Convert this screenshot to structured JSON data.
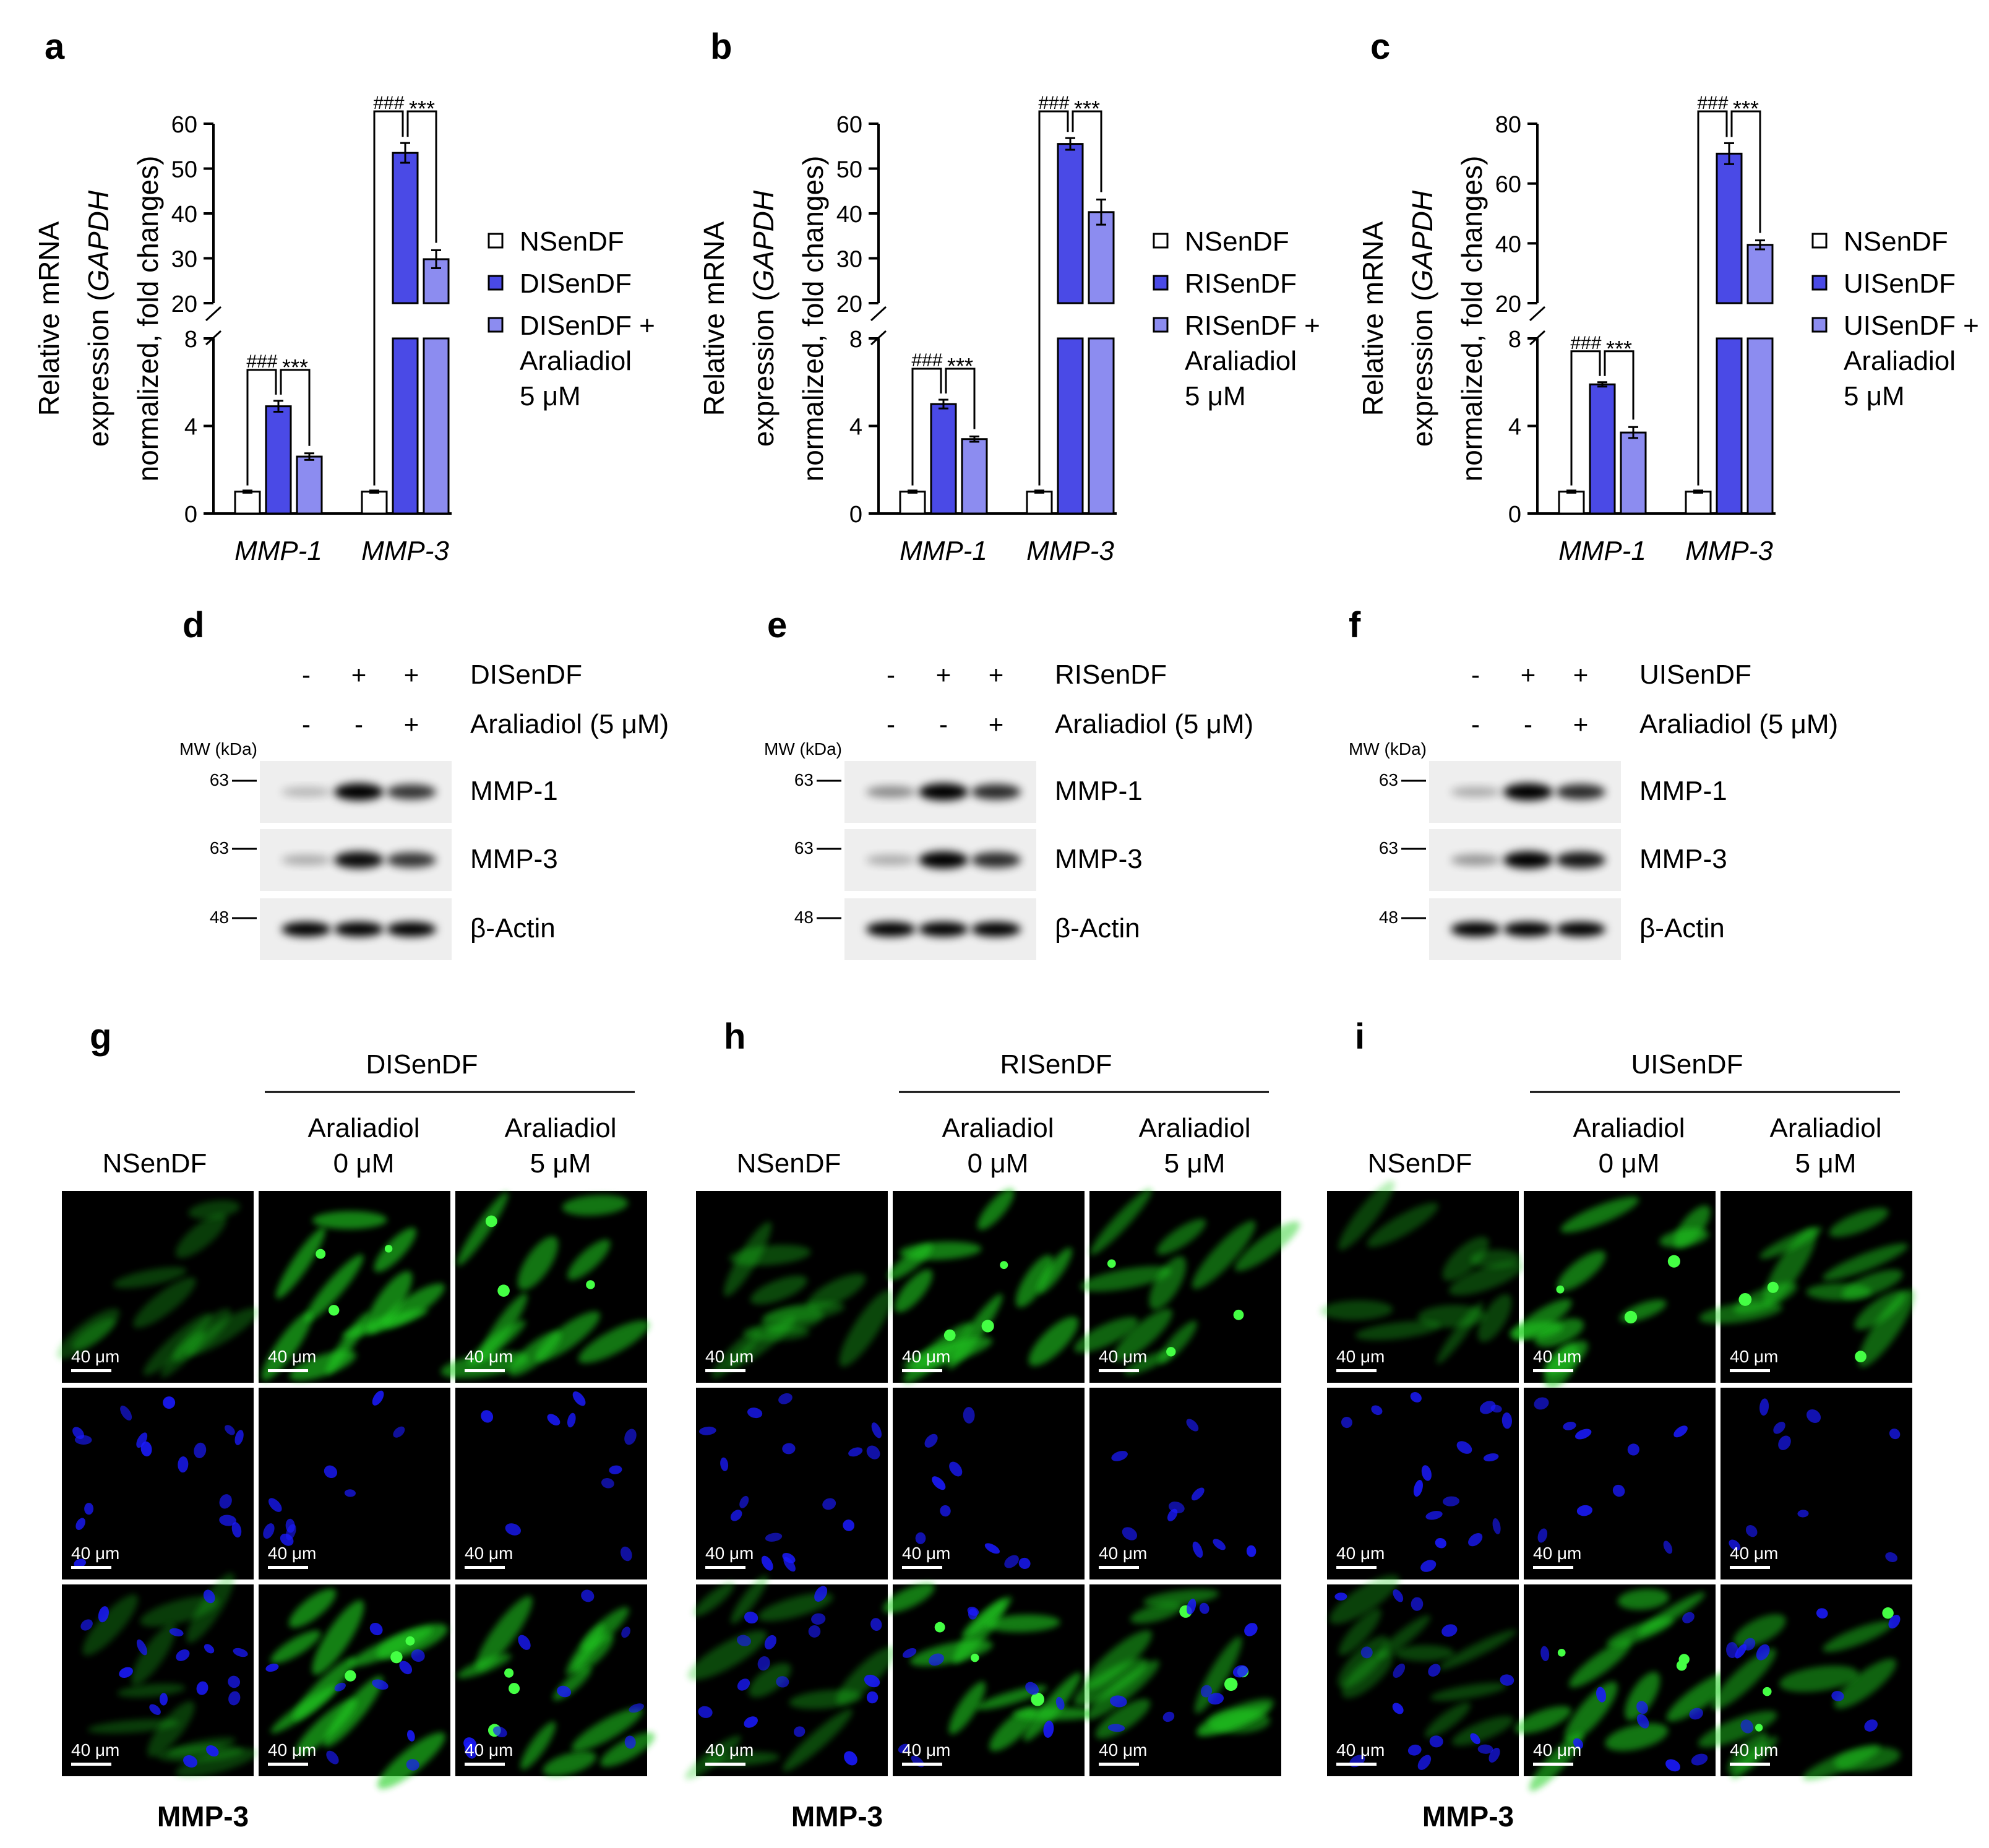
{
  "panel_letters": [
    "a",
    "b",
    "c",
    "d",
    "e",
    "f",
    "g",
    "h",
    "i"
  ],
  "colors": {
    "control": "#ffffff",
    "induced": "#4a4ae6",
    "treated": "#8c8cf0",
    "axis": "#000000",
    "nucleus": "#1a1aff",
    "mmp3_stain": "#22d022",
    "image_bg": "#000000"
  },
  "y_axis_label_lines": [
    "Relative mRNA",
    "expression (GAPDH",
    "normalized, fold changes)"
  ],
  "y_axis_label_italic_word": "GAPDH",
  "x_categories": [
    "MMP-1",
    "MMP-3"
  ],
  "sig_hash": "###",
  "sig_star": "***",
  "chart_data": [
    {
      "type": "bar",
      "panel": "a",
      "categories": [
        "MMP-1",
        "MMP-3"
      ],
      "series": [
        {
          "name": "NSenDF",
          "values": [
            1.0,
            1.0
          ],
          "errors": [
            0.05,
            0.05
          ]
        },
        {
          "name": "DISenDF",
          "values": [
            4.9,
            53.5
          ],
          "errors": [
            0.25,
            2.2
          ]
        },
        {
          "name": "DISenDF + Araliadiol 5 μM",
          "values": [
            2.6,
            29.8
          ],
          "errors": [
            0.15,
            2.0
          ]
        }
      ],
      "legend_lines": [
        [
          "NSenDF"
        ],
        [
          "DISenDF"
        ],
        [
          "DISenDF +",
          "Araliadiol",
          "5 μM"
        ]
      ],
      "ylabel": "Relative mRNA expression (GAPDH normalized, fold changes)",
      "y_axis_break": true,
      "lower_segment": {
        "ylim": [
          0,
          8
        ],
        "ticks": [
          0,
          4,
          8
        ]
      },
      "upper_segment": {
        "ylim": [
          20,
          60
        ],
        "ticks": [
          20,
          30,
          40,
          50,
          60
        ]
      }
    },
    {
      "type": "bar",
      "panel": "b",
      "categories": [
        "MMP-1",
        "MMP-3"
      ],
      "series": [
        {
          "name": "NSenDF",
          "values": [
            1.0,
            1.0
          ],
          "errors": [
            0.05,
            0.05
          ]
        },
        {
          "name": "RISenDF",
          "values": [
            5.0,
            55.5
          ],
          "errors": [
            0.2,
            1.3
          ]
        },
        {
          "name": "RISenDF + Araliadiol 5 μM",
          "values": [
            3.4,
            40.3
          ],
          "errors": [
            0.12,
            2.8
          ]
        }
      ],
      "legend_lines": [
        [
          "NSenDF"
        ],
        [
          "RISenDF"
        ],
        [
          "RISenDF +",
          "Araliadiol",
          "5 μM"
        ]
      ],
      "ylabel": "Relative mRNA expression (GAPDH normalized, fold changes)",
      "y_axis_break": true,
      "lower_segment": {
        "ylim": [
          0,
          8
        ],
        "ticks": [
          0,
          4,
          8
        ]
      },
      "upper_segment": {
        "ylim": [
          20,
          60
        ],
        "ticks": [
          20,
          30,
          40,
          50,
          60
        ]
      }
    },
    {
      "type": "bar",
      "panel": "c",
      "categories": [
        "MMP-1",
        "MMP-3"
      ],
      "series": [
        {
          "name": "NSenDF",
          "values": [
            1.0,
            1.0
          ],
          "errors": [
            0.05,
            0.05
          ]
        },
        {
          "name": "UISenDF",
          "values": [
            5.9,
            70.0
          ],
          "errors": [
            0.1,
            3.5
          ]
        },
        {
          "name": "UISenDF + Araliadiol 5 μM",
          "values": [
            3.7,
            39.5
          ],
          "errors": [
            0.25,
            1.5
          ]
        }
      ],
      "legend_lines": [
        [
          "NSenDF"
        ],
        [
          "UISenDF"
        ],
        [
          "UISenDF +",
          "Araliadiol",
          "5 μM"
        ]
      ],
      "ylabel": "Relative mRNA expression (GAPDH normalized, fold changes)",
      "y_axis_break": true,
      "lower_segment": {
        "ylim": [
          0,
          8
        ],
        "ticks": [
          0,
          4,
          8
        ]
      },
      "upper_segment": {
        "ylim": [
          20,
          80
        ],
        "ticks": [
          20,
          40,
          60,
          80
        ]
      }
    }
  ],
  "western_blots": [
    {
      "panel": "d",
      "condition": "DISenDF",
      "signs_condition": [
        "-",
        "+",
        "+"
      ],
      "signs_treatment": [
        "-",
        "-",
        "+"
      ],
      "band_intensity": {
        "MMP-1": [
          0.15,
          1.0,
          0.75
        ],
        "MMP-3": [
          0.2,
          0.95,
          0.75
        ],
        "β-Actin": [
          1.0,
          1.0,
          1.0
        ]
      }
    },
    {
      "panel": "e",
      "condition": "RISenDF",
      "signs_condition": [
        "-",
        "+",
        "+"
      ],
      "signs_treatment": [
        "-",
        "-",
        "+"
      ],
      "band_intensity": {
        "MMP-1": [
          0.35,
          1.0,
          0.8
        ],
        "MMP-3": [
          0.2,
          1.0,
          0.8
        ],
        "β-Actin": [
          1.0,
          1.0,
          1.0
        ]
      }
    },
    {
      "panel": "f",
      "condition": "UISenDF",
      "signs_condition": [
        "-",
        "+",
        "+"
      ],
      "signs_treatment": [
        "-",
        "-",
        "+"
      ],
      "band_intensity": {
        "MMP-1": [
          0.2,
          1.0,
          0.8
        ],
        "MMP-3": [
          0.3,
          1.0,
          0.9
        ],
        "β-Actin": [
          1.0,
          1.0,
          1.0
        ]
      }
    }
  ],
  "wb_labels": {
    "treatment": "Araliadiol (5 μM)",
    "mw_header": "MW (kDa)",
    "mw_markers": [
      "63",
      "63",
      "48"
    ],
    "proteins": [
      "MMP-1",
      "MMP-3",
      "β-Actin"
    ]
  },
  "if_panels": [
    {
      "panel": "g",
      "condition": "DISenDF"
    },
    {
      "panel": "h",
      "condition": "RISenDF"
    },
    {
      "panel": "i",
      "condition": "UISenDF"
    }
  ],
  "if_labels": {
    "column_0": "NSenDF",
    "column_1_lines": [
      "Araliadiol",
      "0 μM"
    ],
    "column_2_lines": [
      "Araliadiol",
      "5 μM"
    ],
    "scale_bar": "40 μm",
    "caption": "MMP-3"
  },
  "if_green_level": [
    [
      0.25,
      0.85,
      0.75
    ],
    [
      0.35,
      0.8,
      0.6
    ],
    [
      0.3,
      0.75,
      0.6
    ]
  ]
}
